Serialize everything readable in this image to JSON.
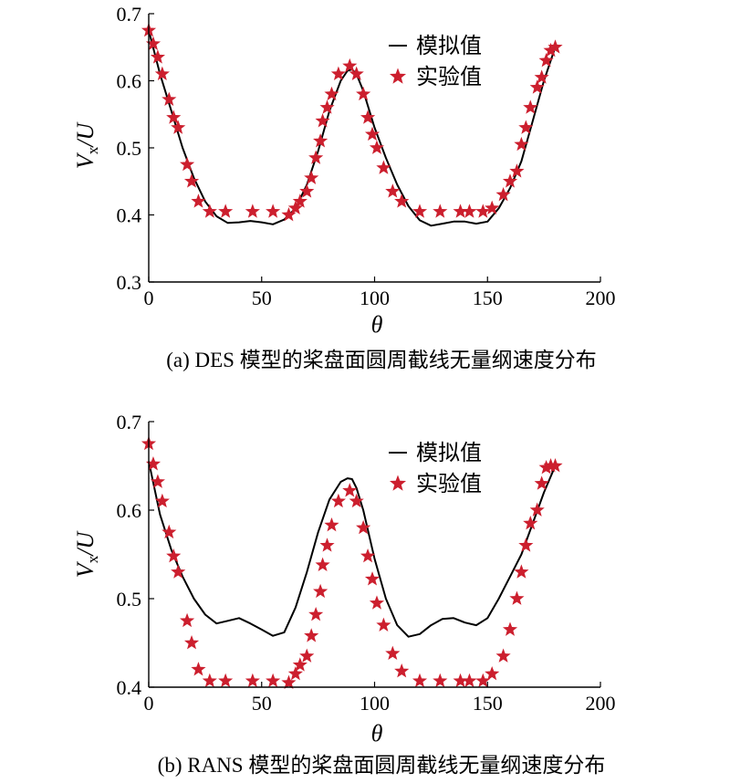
{
  "chart_data": [
    {
      "type": "line",
      "caption": "(a) DES 模型的桨盘面圆周截线无量纲速度分布",
      "xlabel": "θ",
      "ylabel": {
        "main": "V",
        "sub": "x",
        "rest": "/U"
      },
      "xlim": [
        0,
        200
      ],
      "ylim": [
        0.3,
        0.7
      ],
      "xticks": [
        "0",
        "50",
        "100",
        "150",
        "200"
      ],
      "yticks": [
        "0.3",
        "0.4",
        "0.5",
        "0.6",
        "0.7"
      ],
      "legend_position": "top-right",
      "grid": false,
      "series": [
        {
          "name": "模拟值",
          "style": "line",
          "color": "#000000",
          "x": [
            0,
            5,
            10,
            15,
            20,
            25,
            30,
            35,
            40,
            45,
            50,
            55,
            60,
            65,
            70,
            75,
            80,
            85,
            88,
            90,
            92,
            95,
            100,
            105,
            110,
            115,
            120,
            125,
            130,
            135,
            140,
            145,
            150,
            155,
            160,
            165,
            170,
            175,
            180
          ],
          "y": [
            0.675,
            0.61,
            0.555,
            0.5,
            0.455,
            0.42,
            0.398,
            0.388,
            0.389,
            0.391,
            0.389,
            0.386,
            0.393,
            0.41,
            0.445,
            0.495,
            0.555,
            0.6,
            0.615,
            0.617,
            0.61,
            0.585,
            0.53,
            0.485,
            0.445,
            0.413,
            0.392,
            0.384,
            0.387,
            0.39,
            0.39,
            0.387,
            0.39,
            0.41,
            0.44,
            0.48,
            0.54,
            0.6,
            0.65
          ]
        },
        {
          "name": "实验值",
          "style": "star",
          "color": "#cc1f2e",
          "x": [
            0,
            2,
            4,
            6,
            9,
            11,
            13,
            17,
            19,
            22,
            27,
            34,
            46,
            55,
            62,
            65,
            67,
            70,
            72,
            74,
            76,
            77,
            79,
            81,
            84,
            89,
            92,
            95,
            97,
            99,
            101,
            104,
            108,
            112,
            120,
            129,
            138,
            142,
            148,
            152,
            157,
            160,
            163,
            165,
            167,
            169,
            172,
            174,
            176,
            178,
            180
          ],
          "y": [
            0.675,
            0.655,
            0.635,
            0.61,
            0.572,
            0.545,
            0.53,
            0.475,
            0.45,
            0.42,
            0.405,
            0.405,
            0.405,
            0.405,
            0.4,
            0.41,
            0.42,
            0.435,
            0.455,
            0.485,
            0.51,
            0.54,
            0.56,
            0.58,
            0.61,
            0.622,
            0.61,
            0.58,
            0.545,
            0.52,
            0.5,
            0.47,
            0.435,
            0.42,
            0.405,
            0.405,
            0.405,
            0.405,
            0.405,
            0.41,
            0.43,
            0.45,
            0.465,
            0.505,
            0.53,
            0.56,
            0.59,
            0.605,
            0.63,
            0.645,
            0.65
          ]
        }
      ]
    },
    {
      "type": "line",
      "caption": "(b) RANS 模型的桨盘面圆周截线无量纲速度分布",
      "xlabel": "θ",
      "ylabel": {
        "main": "V",
        "sub": "x",
        "rest": "/U"
      },
      "xlim": [
        0,
        200
      ],
      "ylim": [
        0.4,
        0.7
      ],
      "xticks": [
        "0",
        "50",
        "100",
        "150",
        "200"
      ],
      "yticks": [
        "0.4",
        "0.5",
        "0.6",
        "0.7"
      ],
      "legend_position": "top-right",
      "grid": false,
      "series": [
        {
          "name": "模拟值",
          "style": "line",
          "color": "#000000",
          "x": [
            0,
            5,
            10,
            15,
            20,
            25,
            30,
            35,
            40,
            45,
            50,
            55,
            60,
            65,
            70,
            75,
            80,
            85,
            88,
            90,
            92,
            95,
            100,
            105,
            110,
            115,
            120,
            125,
            130,
            135,
            140,
            145,
            150,
            155,
            160,
            165,
            170,
            175,
            180
          ],
          "y": [
            0.655,
            0.595,
            0.555,
            0.525,
            0.5,
            0.482,
            0.472,
            0.475,
            0.478,
            0.472,
            0.465,
            0.458,
            0.462,
            0.49,
            0.53,
            0.575,
            0.612,
            0.632,
            0.636,
            0.635,
            0.625,
            0.6,
            0.545,
            0.5,
            0.47,
            0.457,
            0.46,
            0.47,
            0.477,
            0.478,
            0.473,
            0.47,
            0.478,
            0.5,
            0.525,
            0.55,
            0.585,
            0.62,
            0.65
          ]
        },
        {
          "name": "实验值",
          "style": "star",
          "color": "#cc1f2e",
          "x": [
            0,
            2,
            4,
            6,
            9,
            11,
            13,
            17,
            19,
            22,
            27,
            34,
            46,
            55,
            62,
            65,
            67,
            70,
            72,
            74,
            76,
            77,
            79,
            81,
            84,
            89,
            92,
            95,
            97,
            99,
            101,
            104,
            108,
            112,
            120,
            129,
            138,
            142,
            148,
            152,
            157,
            160,
            163,
            165,
            167,
            169,
            172,
            174,
            176,
            178,
            180
          ],
          "y": [
            0.675,
            0.652,
            0.632,
            0.61,
            0.575,
            0.548,
            0.53,
            0.475,
            0.45,
            0.42,
            0.407,
            0.407,
            0.407,
            0.407,
            0.405,
            0.415,
            0.425,
            0.435,
            0.458,
            0.482,
            0.508,
            0.538,
            0.56,
            0.583,
            0.61,
            0.622,
            0.61,
            0.58,
            0.548,
            0.522,
            0.495,
            0.47,
            0.438,
            0.418,
            0.407,
            0.407,
            0.407,
            0.407,
            0.407,
            0.415,
            0.435,
            0.465,
            0.5,
            0.53,
            0.56,
            0.585,
            0.6,
            0.63,
            0.648,
            0.65,
            0.65
          ]
        }
      ]
    }
  ]
}
